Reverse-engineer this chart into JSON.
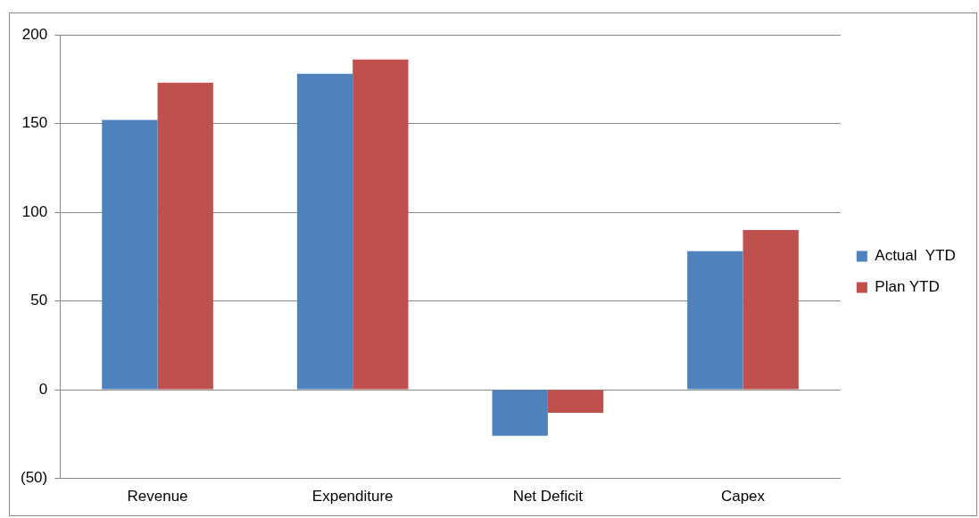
{
  "chart_data": {
    "type": "bar",
    "categories": [
      "Revenue",
      "Expenditure",
      "Net Deficit",
      "Capex"
    ],
    "series": [
      {
        "name": "Actual  YTD",
        "color": "#4f81bd",
        "values": [
          152,
          178,
          -26,
          78
        ]
      },
      {
        "name": "Plan YTD",
        "color": "#c0504d",
        "values": [
          173,
          186,
          -13,
          90
        ]
      }
    ],
    "ylim": [
      -50,
      200
    ],
    "yticks": [
      {
        "value": -50,
        "label": "(50)"
      },
      0,
      50,
      100,
      150,
      200
    ],
    "grid": "y",
    "legend": "right"
  }
}
